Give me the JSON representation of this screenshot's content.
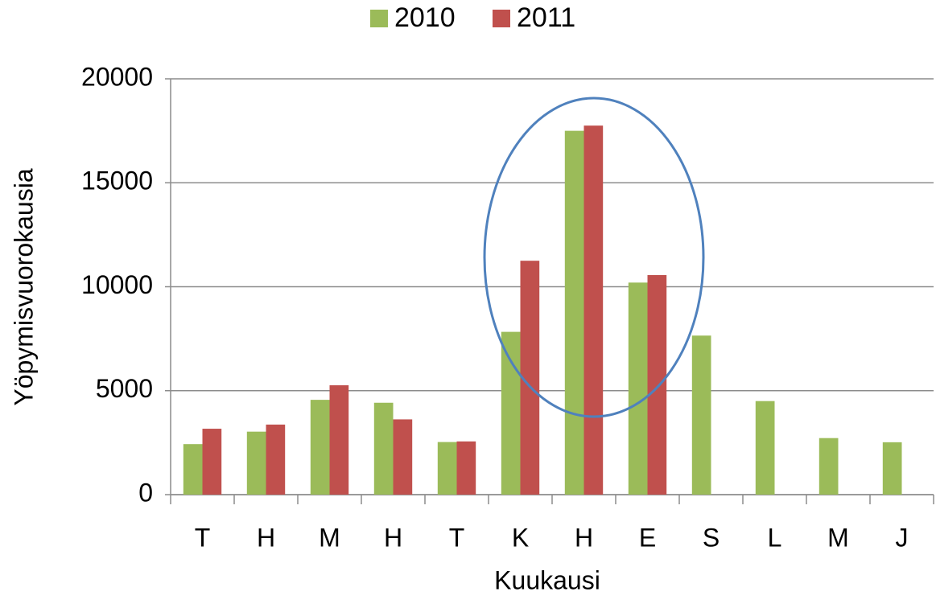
{
  "chart_data": {
    "type": "bar",
    "x_label": "Kuukausi",
    "y_label": "Yöpymisvuorokausia",
    "categories": [
      "T",
      "H",
      "M",
      "H",
      "T",
      "K",
      "H",
      "E",
      "S",
      "L",
      "M",
      "J"
    ],
    "series": [
      {
        "name": "2010",
        "color": "#9bbb59",
        "values": [
          2430,
          3030,
          4560,
          4420,
          2530,
          7830,
          17500,
          10200,
          7650,
          4500,
          2720,
          2520
        ]
      },
      {
        "name": "2011",
        "color": "#c0504d",
        "values": [
          3170,
          3370,
          5260,
          3620,
          2560,
          11250,
          17750,
          10560,
          null,
          null,
          null,
          null
        ]
      }
    ],
    "ylim": [
      0,
      20000
    ],
    "yticks": [
      0,
      5000,
      10000,
      15000,
      20000
    ],
    "grid": true,
    "legend": "top"
  }
}
